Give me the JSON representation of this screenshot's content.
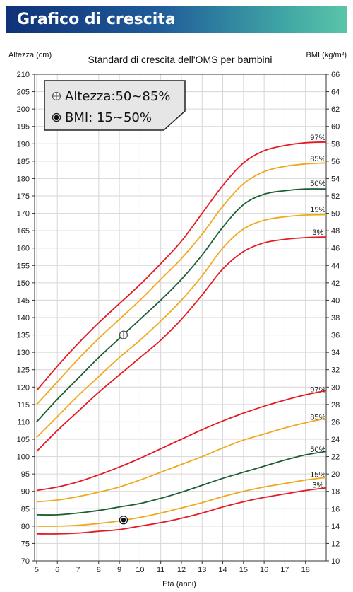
{
  "header": {
    "title": "Grafico di crescita"
  },
  "chart_data": {
    "type": "line",
    "title": "Standard di crescita dell'OMS per bambini",
    "xlabel": "Età (anni)",
    "ylabel_left": "Altezza (cm)",
    "ylabel_right": "BMI (kg/m²)",
    "xlim": [
      4.9,
      19
    ],
    "ylim_left": [
      70,
      210
    ],
    "ylim_right": [
      10,
      66
    ],
    "x_ticks": [
      5,
      6,
      7,
      8,
      9,
      10,
      11,
      12,
      13,
      14,
      15,
      16,
      17,
      18
    ],
    "y_left_ticks": [
      70,
      75,
      80,
      85,
      90,
      95,
      100,
      105,
      110,
      115,
      120,
      125,
      130,
      135,
      140,
      145,
      150,
      155,
      160,
      165,
      170,
      175,
      180,
      185,
      190,
      195,
      200,
      205,
      210
    ],
    "y_right_ticks": [
      10,
      12,
      14,
      16,
      18,
      20,
      22,
      24,
      26,
      28,
      30,
      32,
      34,
      36,
      38,
      40,
      42,
      44,
      46,
      48,
      50,
      52,
      54,
      56,
      58,
      60,
      62,
      64,
      66
    ],
    "grid": true,
    "colors": {
      "p97": "#e31b23",
      "p85": "#f0a81c",
      "p50": "#1b5e33",
      "p15": "#f0a81c",
      "p3": "#e31b23"
    },
    "height_series": [
      {
        "name": "97%",
        "x": [
          5,
          6,
          7,
          8,
          9,
          10,
          11,
          12,
          13,
          14,
          15,
          16,
          17,
          18,
          19
        ],
        "values": [
          119,
          126,
          132.5,
          138.5,
          144,
          149.5,
          155.5,
          162,
          170,
          178,
          184.5,
          188,
          189.5,
          190.3,
          190.5
        ]
      },
      {
        "name": "85%",
        "x": [
          5,
          6,
          7,
          8,
          9,
          10,
          11,
          12,
          13,
          14,
          15,
          16,
          17,
          18,
          19
        ],
        "values": [
          115,
          121.5,
          128,
          134,
          139.5,
          145,
          151,
          157,
          164,
          172,
          178.5,
          182,
          183.5,
          184.2,
          184.5
        ]
      },
      {
        "name": "50%",
        "x": [
          5,
          6,
          7,
          8,
          9,
          10,
          11,
          12,
          13,
          14,
          15,
          16,
          17,
          18,
          19
        ],
        "values": [
          110,
          116.5,
          122.5,
          128.5,
          134,
          139.5,
          145,
          151,
          158,
          166,
          172.5,
          175.5,
          176.5,
          177,
          177
        ]
      },
      {
        "name": "15%",
        "x": [
          5,
          6,
          7,
          8,
          9,
          10,
          11,
          12,
          13,
          14,
          15,
          16,
          17,
          18,
          19
        ],
        "values": [
          105.5,
          111.5,
          117.5,
          123,
          128.5,
          133.5,
          139,
          145,
          152,
          160,
          165.5,
          168,
          169,
          169.5,
          169.6
        ]
      },
      {
        "name": "3%",
        "x": [
          5,
          6,
          7,
          8,
          9,
          10,
          11,
          12,
          13,
          14,
          15,
          16,
          17,
          18,
          19
        ],
        "values": [
          101.5,
          107.5,
          113,
          118.5,
          123.5,
          128.5,
          133.5,
          139.5,
          146.5,
          154,
          159,
          161.5,
          162.5,
          163,
          163.2
        ]
      }
    ],
    "bmi_series": [
      {
        "name": "97%",
        "x": [
          5,
          6,
          7,
          8,
          9,
          10,
          11,
          12,
          13,
          14,
          15,
          16,
          17,
          18,
          19
        ],
        "values": [
          18.1,
          18.5,
          19.1,
          19.9,
          20.8,
          21.8,
          22.9,
          24.0,
          25.1,
          26.1,
          27.0,
          27.8,
          28.5,
          29.1,
          29.6
        ]
      },
      {
        "name": "85%",
        "x": [
          5,
          6,
          7,
          8,
          9,
          10,
          11,
          12,
          13,
          14,
          15,
          16,
          17,
          18,
          19
        ],
        "values": [
          16.8,
          17.0,
          17.4,
          17.9,
          18.5,
          19.3,
          20.2,
          21.1,
          22.0,
          23.0,
          23.9,
          24.6,
          25.3,
          25.9,
          26.4
        ]
      },
      {
        "name": "50%",
        "x": [
          5,
          6,
          7,
          8,
          9,
          10,
          11,
          12,
          13,
          14,
          15,
          16,
          17,
          18,
          19
        ],
        "values": [
          15.3,
          15.3,
          15.5,
          15.8,
          16.2,
          16.6,
          17.2,
          17.9,
          18.7,
          19.5,
          20.2,
          20.9,
          21.6,
          22.2,
          22.6
        ]
      },
      {
        "name": "15%",
        "x": [
          5,
          6,
          7,
          8,
          9,
          10,
          11,
          12,
          13,
          14,
          15,
          16,
          17,
          18,
          19
        ],
        "values": [
          14.0,
          14.0,
          14.1,
          14.3,
          14.6,
          15.0,
          15.5,
          16.1,
          16.7,
          17.4,
          18.0,
          18.5,
          18.9,
          19.3,
          19.6
        ]
      },
      {
        "name": "3%",
        "x": [
          5,
          6,
          7,
          8,
          9,
          10,
          11,
          12,
          13,
          14,
          15,
          16,
          17,
          18,
          19
        ],
        "values": [
          13.1,
          13.1,
          13.2,
          13.4,
          13.6,
          14.0,
          14.4,
          14.9,
          15.5,
          16.2,
          16.8,
          17.3,
          17.7,
          18.1,
          18.4
        ]
      }
    ],
    "points": [
      {
        "label": "Altezza:50~85%",
        "x": 9.2,
        "value": 135,
        "axis": "left",
        "marker": "crosshair"
      },
      {
        "label": "BMI: 15~50%",
        "x": 9.2,
        "value": 14.7,
        "axis": "right",
        "marker": "dot"
      }
    ]
  }
}
